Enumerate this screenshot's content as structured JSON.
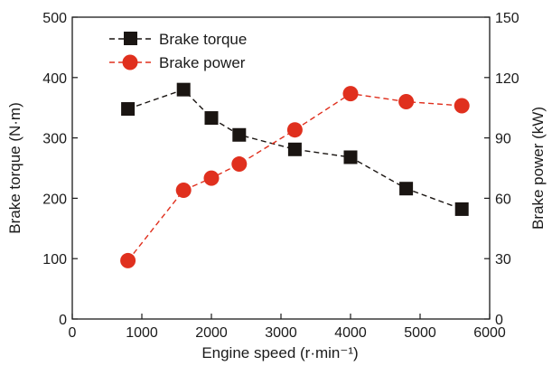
{
  "chart_data": {
    "type": "line",
    "xlabel": "Engine speed (r·min⁻¹)",
    "ylabel_left": "Brake torque (N·m)",
    "ylabel_right": "Brake power (kW)",
    "xlim": [
      0,
      6000
    ],
    "ylim_left": [
      0,
      500
    ],
    "ylim_right": [
      0,
      150
    ],
    "x_ticks": [
      0,
      1000,
      2000,
      3000,
      4000,
      5000,
      6000
    ],
    "y_ticks_left": [
      0,
      100,
      200,
      300,
      400,
      500
    ],
    "y_ticks_right": [
      0,
      30,
      60,
      90,
      120,
      150
    ],
    "x_tick_labels": [
      "0",
      "1000",
      "2000",
      "3000",
      "4000",
      "5000",
      "6000"
    ],
    "y_tick_labels_left": [
      "0",
      "100",
      "200",
      "300",
      "400",
      "500"
    ],
    "y_tick_labels_right": [
      "0",
      "30",
      "60",
      "90",
      "120",
      "150"
    ],
    "grid": false,
    "legend_position": "top-left",
    "series": [
      {
        "name": "Brake torque",
        "axis": "left",
        "marker": "square",
        "line_style": "dashed",
        "color": "#1a1512",
        "x": [
          800,
          1600,
          2000,
          2400,
          3200,
          4000,
          4800,
          5600
        ],
        "y": [
          348,
          380,
          333,
          305,
          281,
          268,
          216,
          182
        ]
      },
      {
        "name": "Brake power",
        "axis": "right",
        "marker": "circle",
        "line_style": "dashed",
        "color": "#e0301e",
        "x": [
          800,
          1600,
          2000,
          2400,
          3200,
          4000,
          4800,
          5600
        ],
        "y": [
          29,
          64,
          70,
          77,
          94,
          112,
          108,
          106
        ]
      }
    ]
  }
}
